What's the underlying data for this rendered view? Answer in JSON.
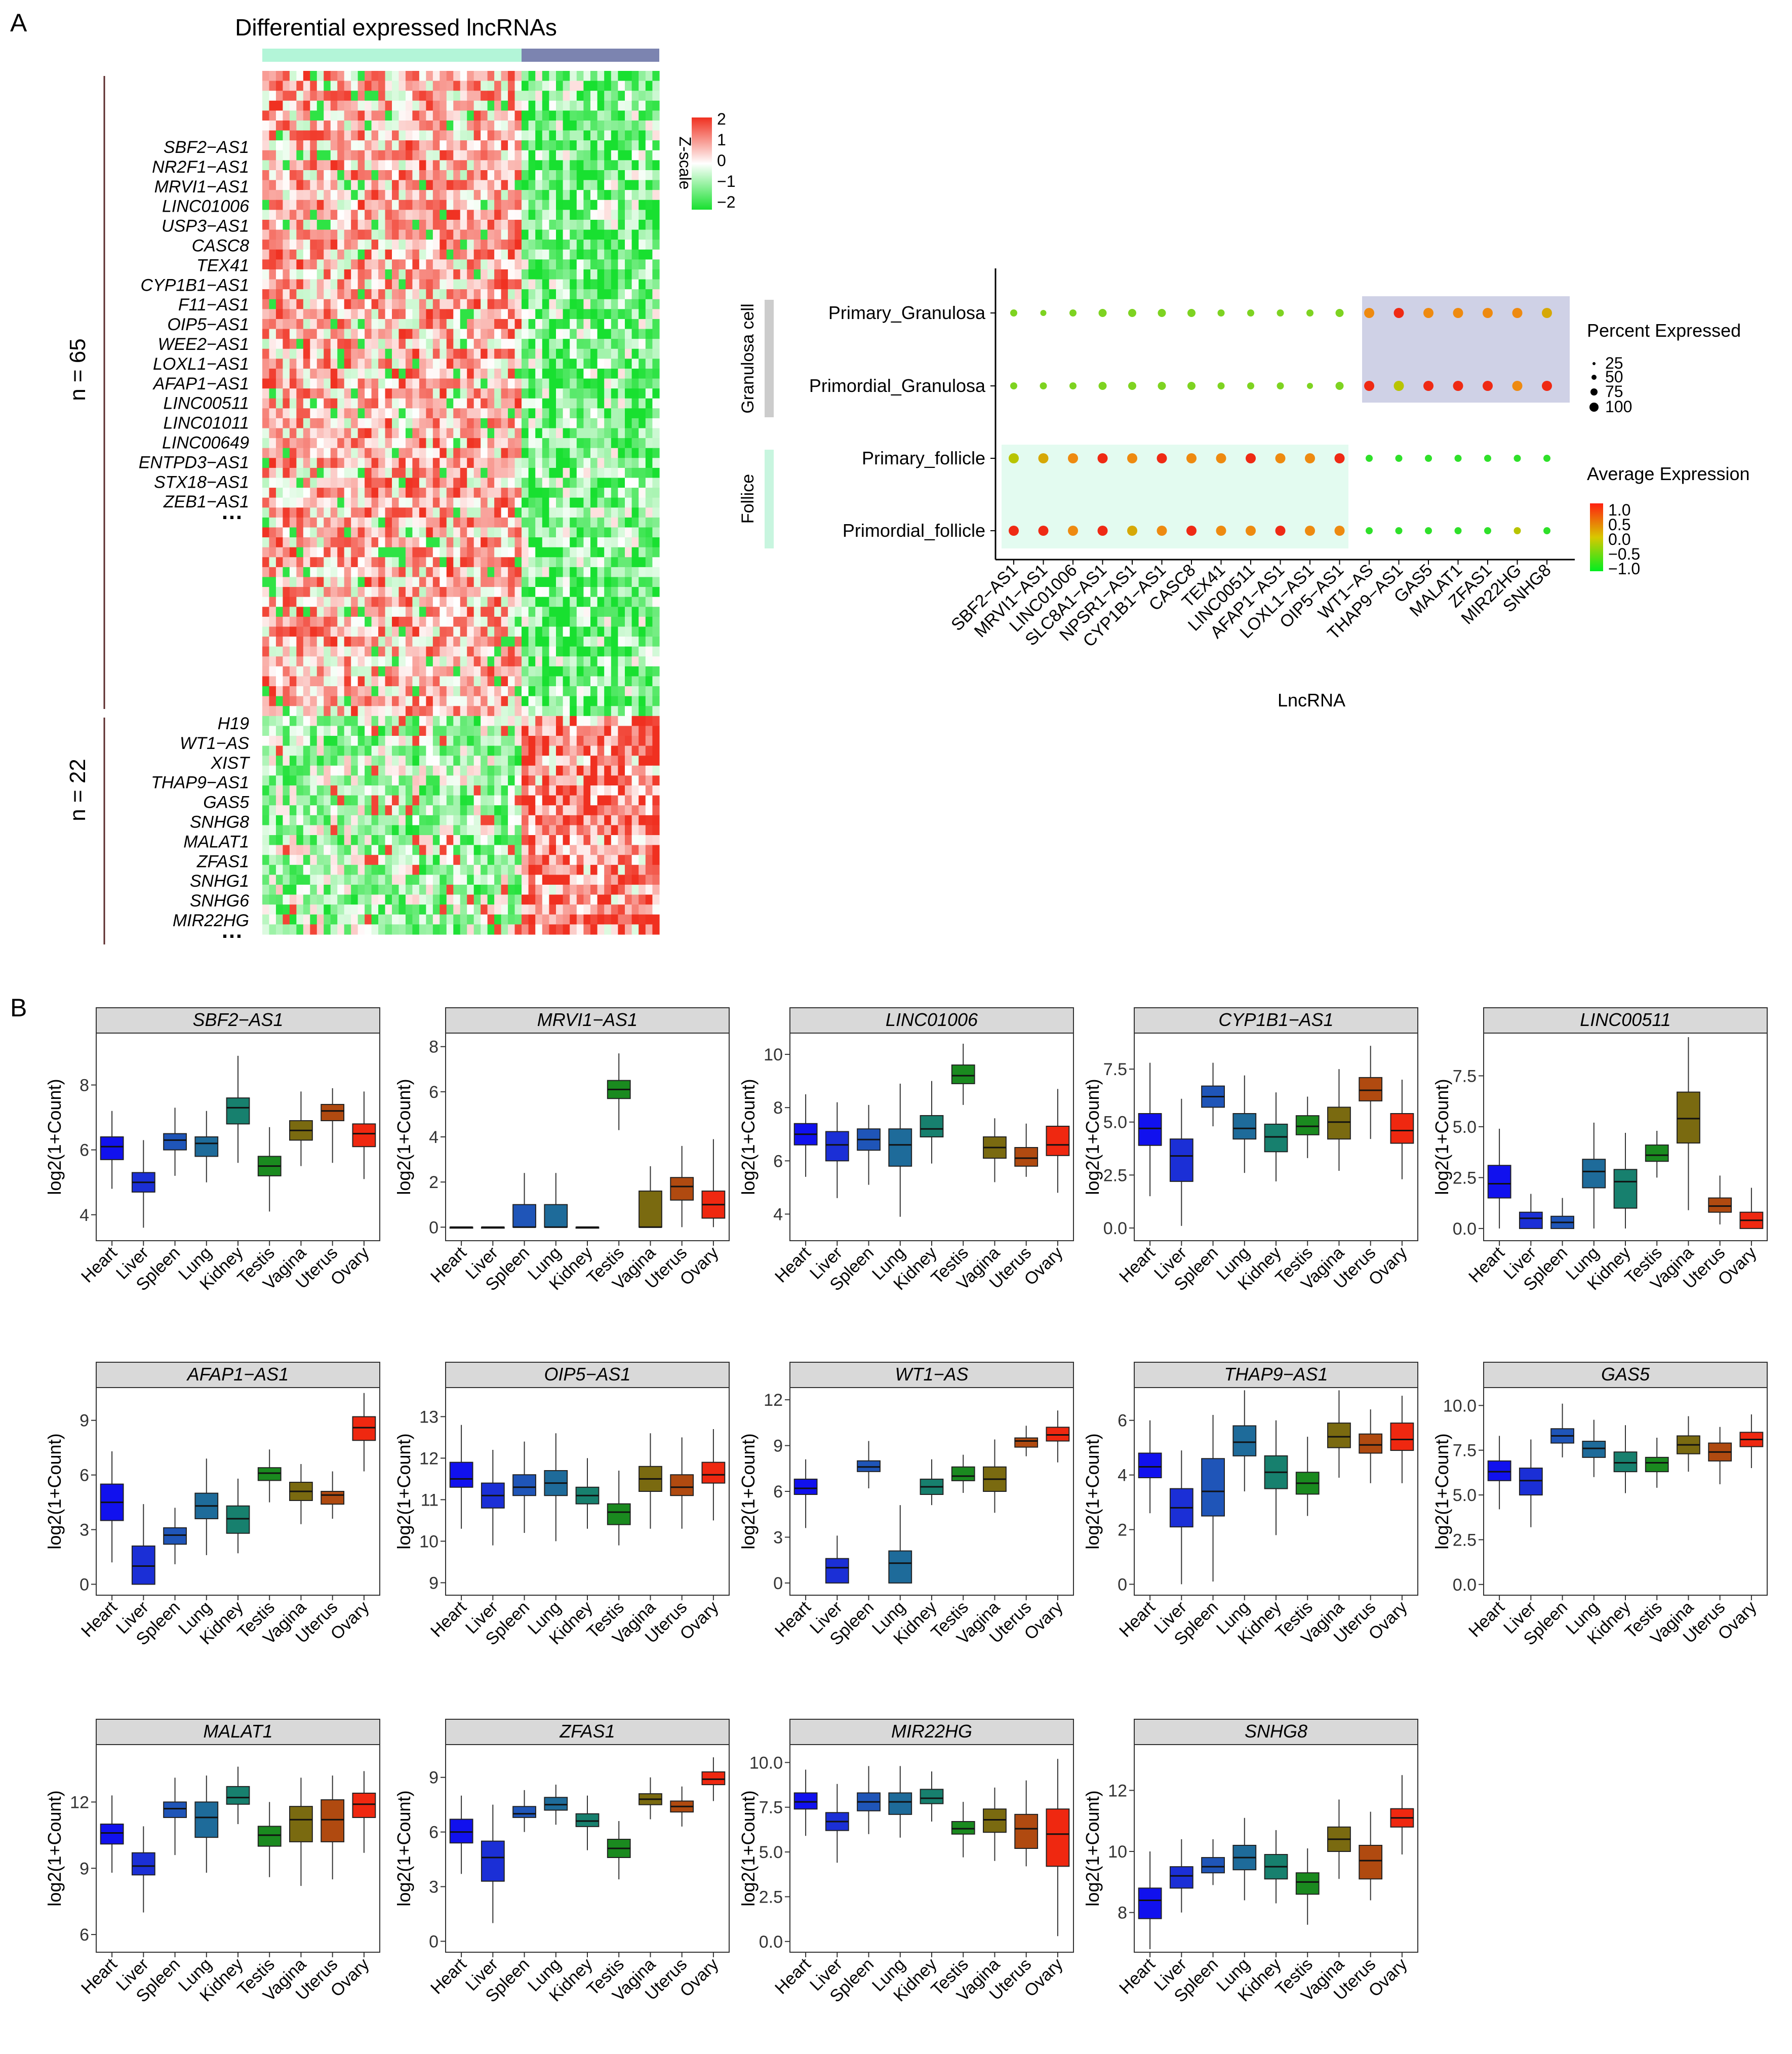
{
  "panel_a_label": "A",
  "panel_b_label": "B",
  "heatmap": {
    "title": "Differential expressed lncRNAs",
    "legend_title": "Z-scale",
    "legend_ticks": [
      "2",
      "1",
      "0",
      "−1",
      "−2"
    ],
    "groups": [
      {
        "label": "n = 65",
        "genes": [
          "SBF2−AS1",
          "NR2F1−AS1",
          "MRVI1−AS1",
          "LINC01006",
          "USP3−AS1",
          "CASC8",
          "TEX41",
          "CYP1B1−AS1",
          "F11−AS1",
          "OIP5−AS1",
          "WEE2−AS1",
          "LOXL1−AS1",
          "AFAP1−AS1",
          "LINC00511",
          "LINC01011",
          "LINC00649",
          "ENTPD3−AS1",
          "STX18−AS1",
          "ZEB1−AS1"
        ],
        "ellipsis": "…"
      },
      {
        "label": "n = 22",
        "genes": [
          "H19",
          "WT1−AS",
          "XIST",
          "THAP9−AS1",
          "GAS5",
          "SNHG8",
          "MALAT1",
          "ZFAS1",
          "SNHG1",
          "SNHG6",
          "MIR22HG"
        ],
        "ellipsis": "…"
      }
    ],
    "colors": {
      "high": "#f03020",
      "mid": "#ffffff",
      "low": "#18e030",
      "bar_left": "#b3f5d8",
      "bar_right": "#7c84b0"
    }
  },
  "dotplot": {
    "xlabel": "LncRNA",
    "rows": [
      "Primary_Granulosa",
      "Primordial_Granulosa",
      "Primary_follicle",
      "Primordial_follicle"
    ],
    "row_groups": [
      "Granulosa cell",
      "Follice"
    ],
    "columns": [
      "SBF2−AS1",
      "MRVI1−AS1",
      "LINC01006",
      "SLC8A1−AS1",
      "NPSR1−AS1",
      "CYP1B1−AS1",
      "CASC8",
      "TEX41",
      "LINC00511",
      "AFAP1−AS1",
      "LOXL1−AS1",
      "OIP5−AS1",
      "WT1−AS",
      "THAP9−AS1",
      "GAS5",
      "MALAT1",
      "ZFAS1",
      "MIR22HG",
      "SNHG8"
    ],
    "legend_size_title": "Percent Expressed",
    "legend_size_values": [
      "25",
      "50",
      "75",
      "100"
    ],
    "legend_color_title": "Average Expression",
    "legend_color_values": [
      "1.0",
      "0.5",
      "0.0",
      "−0.5",
      "−1.0"
    ],
    "colors": {
      "granulosa_highlight": "#cfd1e6",
      "follicle_highlight": "#e3fbf0",
      "group_bar_granulosa": "#cccccc",
      "group_bar_follicle": "#c8f5df"
    }
  },
  "chart_data": {
    "type": "box",
    "ylabel": "log2(1+Count)",
    "tissues": [
      "Heart",
      "Liver",
      "Spleen",
      "Lung",
      "Kidney",
      "Testis",
      "Vagina",
      "Uterus",
      "Ovary"
    ],
    "tissue_colors": [
      "#1111ee",
      "#1b2fd6",
      "#1f55b8",
      "#1e6b9a",
      "#17806e",
      "#1a8a1f",
      "#7a6a10",
      "#b04a10",
      "#ef2810"
    ],
    "genes": [
      {
        "name": "SBF2−AS1",
        "ylim": [
          3.2,
          9.6
        ],
        "yticks": [
          "4",
          "6",
          "8"
        ],
        "boxes": [
          [
            4.8,
            5.7,
            6.1,
            6.4,
            7.2
          ],
          [
            3.6,
            4.7,
            5.0,
            5.3,
            6.3
          ],
          [
            5.2,
            6.0,
            6.3,
            6.5,
            7.3
          ],
          [
            5.0,
            5.8,
            6.2,
            6.4,
            7.2
          ],
          [
            5.6,
            6.8,
            7.3,
            7.6,
            8.9
          ],
          [
            4.1,
            5.2,
            5.5,
            5.8,
            6.7
          ],
          [
            5.5,
            6.3,
            6.6,
            6.9,
            7.8
          ],
          [
            5.6,
            6.9,
            7.2,
            7.4,
            7.9
          ],
          [
            5.1,
            6.1,
            6.5,
            6.8,
            7.8
          ]
        ]
      },
      {
        "name": "MRVI1−AS1",
        "ylim": [
          -0.6,
          8.6
        ],
        "yticks": [
          "0",
          "2",
          "4",
          "6",
          "8"
        ],
        "boxes": [
          [
            0,
            0,
            0,
            0,
            0
          ],
          [
            0,
            0,
            0,
            0,
            0
          ],
          [
            0,
            0,
            0,
            1.0,
            2.4
          ],
          [
            0,
            0,
            0,
            1.0,
            2.4
          ],
          [
            0,
            0,
            0,
            0,
            0
          ],
          [
            4.3,
            5.7,
            6.1,
            6.5,
            7.7
          ],
          [
            0,
            0,
            0,
            1.6,
            2.7
          ],
          [
            0,
            1.2,
            1.8,
            2.2,
            3.6
          ],
          [
            0,
            0.4,
            1.0,
            1.6,
            3.9
          ]
        ]
      },
      {
        "name": "LINC01006",
        "ylim": [
          3.0,
          10.8
        ],
        "yticks": [
          "4",
          "6",
          "8",
          "10"
        ],
        "boxes": [
          [
            5.4,
            6.6,
            7.0,
            7.4,
            8.5
          ],
          [
            4.6,
            6.0,
            6.6,
            7.1,
            8.2
          ],
          [
            5.1,
            6.4,
            6.8,
            7.2,
            8.1
          ],
          [
            3.9,
            5.8,
            6.6,
            7.2,
            8.9
          ],
          [
            5.9,
            6.9,
            7.2,
            7.7,
            9.0
          ],
          [
            8.1,
            8.9,
            9.2,
            9.6,
            10.4
          ],
          [
            5.2,
            6.1,
            6.5,
            6.9,
            7.6
          ],
          [
            5.4,
            5.8,
            6.1,
            6.5,
            7.4
          ],
          [
            4.8,
            6.2,
            6.6,
            7.3,
            8.7
          ]
        ]
      },
      {
        "name": "CYP1B1−AS1",
        "ylim": [
          -0.6,
          9.2
        ],
        "yticks": [
          "0.0",
          "2.5",
          "5.0",
          "7.5"
        ],
        "boxes": [
          [
            1.5,
            3.9,
            4.7,
            5.4,
            7.8
          ],
          [
            0.1,
            2.2,
            3.4,
            4.2,
            6.1
          ],
          [
            4.8,
            5.7,
            6.2,
            6.7,
            7.8
          ],
          [
            2.6,
            4.2,
            4.7,
            5.4,
            7.2
          ],
          [
            2.2,
            3.6,
            4.3,
            4.9,
            6.4
          ],
          [
            3.3,
            4.4,
            4.8,
            5.3,
            6.2
          ],
          [
            2.7,
            4.2,
            5.0,
            5.7,
            7.5
          ],
          [
            4.2,
            6.0,
            6.5,
            7.1,
            8.6
          ],
          [
            2.3,
            4.0,
            4.6,
            5.4,
            7.0
          ]
        ]
      },
      {
        "name": "LINC00511",
        "ylim": [
          -0.6,
          9.6
        ],
        "yticks": [
          "0.0",
          "2.5",
          "5.0",
          "7.5"
        ],
        "boxes": [
          [
            0,
            1.5,
            2.2,
            3.1,
            4.9
          ],
          [
            0,
            0,
            0.5,
            0.8,
            1.7
          ],
          [
            0,
            0,
            0.3,
            0.6,
            1.5
          ],
          [
            0,
            2.0,
            2.8,
            3.4,
            5.2
          ],
          [
            0,
            1.0,
            2.3,
            2.9,
            4.7
          ],
          [
            2.5,
            3.3,
            3.6,
            4.1,
            4.8
          ],
          [
            0.9,
            4.2,
            5.4,
            6.7,
            9.4
          ],
          [
            0.2,
            0.8,
            1.1,
            1.5,
            2.6
          ],
          [
            0,
            0,
            0.4,
            0.8,
            2.0
          ]
        ]
      },
      {
        "name": "AFAP1−AS1",
        "ylim": [
          -0.6,
          10.8
        ],
        "yticks": [
          "0",
          "3",
          "6",
          "9"
        ],
        "boxes": [
          [
            1.2,
            3.5,
            4.5,
            5.5,
            7.3
          ],
          [
            0,
            0,
            1.0,
            2.1,
            4.4
          ],
          [
            1.1,
            2.2,
            2.7,
            3.1,
            4.2
          ],
          [
            1.6,
            3.6,
            4.3,
            5.0,
            6.9
          ],
          [
            1.7,
            2.8,
            3.6,
            4.3,
            5.8
          ],
          [
            4.5,
            5.7,
            6.1,
            6.4,
            7.4
          ],
          [
            3.3,
            4.6,
            5.1,
            5.6,
            6.6
          ],
          [
            3.6,
            4.4,
            4.9,
            5.1,
            6.2
          ],
          [
            6.2,
            7.9,
            8.6,
            9.2,
            10.5
          ]
        ]
      },
      {
        "name": "OIP5−AS1",
        "ylim": [
          8.7,
          13.7
        ],
        "yticks": [
          "9",
          "10",
          "11",
          "12",
          "13"
        ],
        "boxes": [
          [
            10.3,
            11.3,
            11.5,
            11.9,
            12.8
          ],
          [
            9.9,
            10.8,
            11.1,
            11.4,
            12.2
          ],
          [
            10.2,
            11.1,
            11.3,
            11.6,
            12.4
          ],
          [
            10.0,
            11.1,
            11.4,
            11.7,
            12.6
          ],
          [
            10.3,
            10.9,
            11.1,
            11.3,
            12.0
          ],
          [
            9.9,
            10.4,
            10.7,
            10.9,
            11.7
          ],
          [
            10.3,
            11.2,
            11.5,
            11.8,
            12.6
          ],
          [
            10.3,
            11.1,
            11.3,
            11.6,
            12.5
          ],
          [
            10.5,
            11.4,
            11.6,
            11.9,
            12.7
          ]
        ]
      },
      {
        "name": "WT1−AS",
        "ylim": [
          -0.8,
          12.8
        ],
        "yticks": [
          "0",
          "3",
          "6",
          "9",
          "12"
        ],
        "boxes": [
          [
            3.6,
            5.8,
            6.2,
            6.8,
            8.1
          ],
          [
            0,
            0,
            1.0,
            1.6,
            3.1
          ],
          [
            6.2,
            7.3,
            7.6,
            8.0,
            9.3
          ],
          [
            0,
            0,
            1.3,
            2.1,
            5.1
          ],
          [
            5.1,
            5.8,
            6.3,
            6.8,
            8.1
          ],
          [
            5.9,
            6.7,
            7.0,
            7.6,
            8.4
          ],
          [
            4.6,
            6.0,
            6.8,
            7.6,
            9.4
          ],
          [
            8.3,
            8.9,
            9.3,
            9.5,
            10.3
          ],
          [
            7.9,
            9.3,
            9.7,
            10.2,
            11.3
          ]
        ]
      },
      {
        "name": "THAP9−AS1",
        "ylim": [
          -0.4,
          7.2
        ],
        "yticks": [
          "0",
          "2",
          "4",
          "6"
        ],
        "boxes": [
          [
            2.6,
            3.9,
            4.3,
            4.8,
            6.0
          ],
          [
            0,
            2.1,
            2.8,
            3.5,
            4.9
          ],
          [
            0.1,
            2.5,
            3.4,
            4.6,
            6.2
          ],
          [
            3.4,
            4.7,
            5.2,
            5.8,
            7.1
          ],
          [
            1.8,
            3.5,
            4.1,
            4.7,
            6.0
          ],
          [
            2.5,
            3.3,
            3.7,
            4.1,
            5.4
          ],
          [
            3.9,
            5.0,
            5.4,
            5.9,
            7.1
          ],
          [
            3.7,
            4.8,
            5.1,
            5.5,
            6.4
          ],
          [
            3.7,
            4.9,
            5.3,
            5.9,
            6.9
          ]
        ]
      },
      {
        "name": "GAS5",
        "ylim": [
          -0.6,
          11.0
        ],
        "yticks": [
          "0.0",
          "2.5",
          "5.0",
          "7.5",
          "10.0"
        ],
        "boxes": [
          [
            4.2,
            5.8,
            6.3,
            6.9,
            8.3
          ],
          [
            3.2,
            5.0,
            5.8,
            6.5,
            8.1
          ],
          [
            7.1,
            7.9,
            8.3,
            8.7,
            10.1
          ],
          [
            6.0,
            7.1,
            7.6,
            8.0,
            9.2
          ],
          [
            5.1,
            6.3,
            6.8,
            7.4,
            8.9
          ],
          [
            5.4,
            6.3,
            6.8,
            7.1,
            8.2
          ],
          [
            6.3,
            7.3,
            7.8,
            8.3,
            9.4
          ],
          [
            5.6,
            6.9,
            7.4,
            7.9,
            8.8
          ],
          [
            6.5,
            7.7,
            8.1,
            8.5,
            9.5
          ]
        ]
      },
      {
        "name": "MALAT1",
        "ylim": [
          5.2,
          14.6
        ],
        "yticks": [
          "6",
          "9",
          "12"
        ],
        "boxes": [
          [
            8.8,
            10.1,
            10.6,
            11.0,
            12.3
          ],
          [
            7.0,
            8.7,
            9.1,
            9.7,
            10.9
          ],
          [
            9.6,
            11.3,
            11.7,
            12.0,
            13.1
          ],
          [
            8.8,
            10.4,
            11.3,
            12.0,
            13.2
          ],
          [
            11.0,
            11.9,
            12.2,
            12.7,
            13.6
          ],
          [
            8.6,
            10.0,
            10.5,
            10.9,
            12.0
          ],
          [
            8.2,
            10.2,
            11.2,
            11.8,
            13.1
          ],
          [
            8.5,
            10.2,
            11.2,
            12.1,
            13.2
          ],
          [
            9.7,
            11.3,
            11.9,
            12.4,
            13.4
          ]
        ]
      },
      {
        "name": "ZFAS1",
        "ylim": [
          -0.6,
          10.8
        ],
        "yticks": [
          "0",
          "3",
          "6",
          "9"
        ],
        "boxes": [
          [
            3.7,
            5.4,
            6.0,
            6.7,
            8.0
          ],
          [
            1.0,
            3.3,
            4.6,
            5.5,
            7.5
          ],
          [
            6.0,
            6.8,
            7.0,
            7.4,
            8.3
          ],
          [
            6.4,
            7.2,
            7.5,
            7.9,
            8.6
          ],
          [
            5.0,
            6.3,
            6.6,
            7.0,
            8.0
          ],
          [
            3.4,
            4.6,
            5.1,
            5.6,
            6.6
          ],
          [
            6.7,
            7.5,
            7.8,
            8.1,
            9.0
          ],
          [
            6.3,
            7.1,
            7.4,
            7.7,
            8.5
          ],
          [
            7.7,
            8.6,
            8.9,
            9.3,
            10.1
          ]
        ]
      },
      {
        "name": "MIR22HG",
        "ylim": [
          -0.6,
          11.0
        ],
        "yticks": [
          "0.0",
          "2.5",
          "5.0",
          "7.5",
          "10.0"
        ],
        "boxes": [
          [
            5.9,
            7.4,
            7.8,
            8.3,
            9.6
          ],
          [
            4.4,
            6.2,
            6.7,
            7.2,
            8.8
          ],
          [
            6.0,
            7.3,
            7.8,
            8.3,
            9.8
          ],
          [
            5.8,
            7.1,
            7.8,
            8.3,
            9.8
          ],
          [
            6.7,
            7.7,
            8.0,
            8.5,
            9.5
          ],
          [
            4.7,
            6.0,
            6.3,
            6.7,
            7.8
          ],
          [
            4.5,
            6.1,
            6.8,
            7.4,
            8.6
          ],
          [
            4.2,
            5.2,
            6.3,
            7.1,
            9.0
          ],
          [
            0.3,
            4.2,
            6.0,
            7.4,
            10.2
          ]
        ]
      },
      {
        "name": "SNHG8",
        "ylim": [
          6.7,
          13.5
        ],
        "yticks": [
          "8",
          "10",
          "12"
        ],
        "boxes": [
          [
            6.8,
            7.8,
            8.4,
            8.8,
            10.0
          ],
          [
            8.0,
            8.8,
            9.2,
            9.5,
            10.4
          ],
          [
            8.9,
            9.3,
            9.5,
            9.8,
            10.4
          ],
          [
            8.4,
            9.4,
            9.8,
            10.2,
            11.1
          ],
          [
            8.3,
            9.1,
            9.5,
            9.9,
            10.7
          ],
          [
            7.6,
            8.6,
            9.0,
            9.3,
            10.1
          ],
          [
            9.1,
            10.0,
            10.4,
            10.8,
            11.7
          ],
          [
            8.4,
            9.1,
            9.7,
            10.2,
            11.3
          ],
          [
            9.9,
            10.8,
            11.1,
            11.4,
            12.5
          ]
        ]
      }
    ]
  }
}
